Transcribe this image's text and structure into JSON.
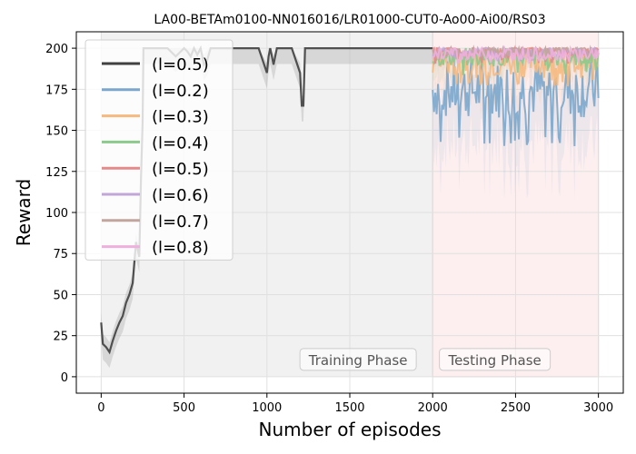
{
  "chart_data": {
    "type": "line",
    "title": "LA00-BETAm0100-NN016016/LR01000-CUT0-Ao00-Ai00/RS03",
    "xlabel": "Number of episodes",
    "ylabel": "Reward",
    "xlim": [
      -150,
      3150
    ],
    "ylim": [
      -10,
      210
    ],
    "xticks": [
      0,
      500,
      1000,
      1500,
      2000,
      2500,
      3000
    ],
    "yticks": [
      0,
      25,
      50,
      75,
      100,
      125,
      150,
      175,
      200
    ],
    "grid": true,
    "legend_position": "top-left",
    "phases": [
      {
        "label": "Training Phase",
        "x_start": 0,
        "x_end": 2000,
        "color": "#d3d3d3"
      },
      {
        "label": "Testing Phase",
        "x_start": 2000,
        "x_end": 3000,
        "color": "#f4a4a4"
      }
    ],
    "training_series": {
      "name": "(l=0.5)",
      "color": "#404040",
      "x": [
        0,
        10,
        30,
        50,
        70,
        90,
        110,
        130,
        150,
        170,
        190,
        210,
        230,
        240,
        250,
        255,
        300,
        350,
        400,
        450,
        500,
        520,
        540,
        560,
        580,
        600,
        620,
        640,
        660,
        700,
        750,
        800,
        850,
        900,
        950,
        1000,
        1010,
        1020,
        1040,
        1060,
        1080,
        1100,
        1150,
        1200,
        1210,
        1220,
        1230,
        1250,
        1300,
        1400,
        1500,
        1600,
        1700,
        1800,
        1900,
        2000
      ],
      "y": [
        33,
        20,
        18,
        15,
        22,
        28,
        33,
        37,
        45,
        50,
        57,
        82,
        73,
        120,
        155,
        200,
        200,
        200,
        200,
        195,
        200,
        198,
        195,
        200,
        196,
        200,
        190,
        193,
        200,
        200,
        200,
        200,
        200,
        200,
        200,
        185,
        195,
        200,
        190,
        200,
        200,
        200,
        200,
        185,
        165,
        165,
        200,
        200,
        200,
        200,
        200,
        200,
        200,
        200,
        200,
        200
      ],
      "band": 6
    },
    "testing_series": [
      {
        "name": "(l=0.2)",
        "color": "#7ba7cc",
        "base": 175,
        "amp": 18,
        "min": 140
      },
      {
        "name": "(l=0.3)",
        "color": "#f6b97f",
        "base": 192,
        "amp": 10,
        "min": 176
      },
      {
        "name": "(l=0.4)",
        "color": "#8cc98c",
        "base": 195,
        "amp": 6,
        "min": 183
      },
      {
        "name": "(l=0.5)",
        "color": "#e48a8a",
        "base": 198,
        "amp": 3,
        "min": 190
      },
      {
        "name": "(l=0.6)",
        "color": "#c3a6d9",
        "base": 198,
        "amp": 3,
        "min": 192
      },
      {
        "name": "(l=0.7)",
        "color": "#c2a59d",
        "base": 198,
        "amp": 3,
        "min": 192
      },
      {
        "name": "(l=0.8)",
        "color": "#eeb0dd",
        "base": 197,
        "amp": 4,
        "min": 190
      }
    ]
  }
}
